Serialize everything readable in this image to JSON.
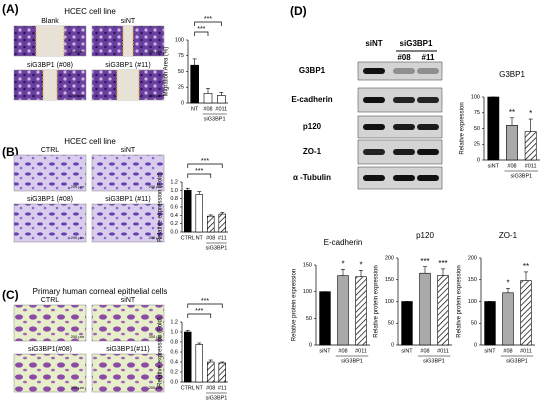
{
  "scale_bar": "200 µm",
  "panels": {
    "a": {
      "label": "(A)",
      "title": "HCEC cell line",
      "images": [
        "Blank",
        "siNT",
        "siG3BP1 (#08)",
        "siG3BP1 (#11)"
      ]
    },
    "b": {
      "label": "(B)",
      "title": "HCEC cell line",
      "images": [
        "CTRL",
        "siNT",
        "siG3BP1 (#08)",
        "siG3BP1 (#11)"
      ]
    },
    "c": {
      "label": "(C)",
      "title": "Primary human corneal epithelial cells",
      "images": [
        "CTRL",
        "siNT",
        "siG3BP1(#08)",
        "siG3BP1(#11)"
      ]
    },
    "d": {
      "label": "(D)",
      "header": [
        "siNT",
        "siG3BP1",
        "#08",
        "#11"
      ],
      "blots": [
        "G3BP1",
        "E-cadherin",
        "p120",
        "ZO-1",
        "α -Tubulin"
      ]
    }
  },
  "chart_data": [
    {
      "type": "bar",
      "ylabel": "Migration Area (%)",
      "categories": [
        "NT",
        "#08",
        "#011"
      ],
      "values": [
        60,
        15,
        12
      ],
      "errors": [
        10,
        8,
        5
      ],
      "colors": [
        "#000000",
        "#ffffff",
        "#ffffff"
      ],
      "hatch": [
        false,
        false,
        false
      ],
      "ylim": [
        0,
        100
      ],
      "yticks": [
        0,
        25,
        50,
        75,
        100
      ],
      "group_label": "siG3BP1",
      "annotations": [
        "***",
        "***"
      ]
    },
    {
      "type": "bar",
      "ylabel": "Relative expression (Fold)",
      "categories": [
        "CTRL",
        "NT",
        "#08",
        "#11"
      ],
      "values": [
        1.0,
        0.9,
        0.38,
        0.43
      ],
      "errors": [
        0.05,
        0.07,
        0.03,
        0.04
      ],
      "colors": [
        "#000000",
        "#ffffff",
        "#ffffff",
        "#ffffff"
      ],
      "hatch": [
        false,
        false,
        true,
        true
      ],
      "ylim": [
        0,
        1.2
      ],
      "yticks": [
        {
          "value": 0,
          "label": "0.0"
        },
        {
          "value": 0.2,
          "label": "0.2"
        },
        {
          "value": 0.4,
          "label": "0.4"
        },
        {
          "value": 0.6,
          "label": "0.6"
        },
        {
          "value": 0.8,
          "label": "0.8"
        },
        {
          "value": 1,
          "label": "1.0"
        },
        {
          "value": 1.2,
          "label": "1.2"
        }
      ],
      "group_label": "siG3BP1",
      "annotations": [
        "***",
        "***"
      ]
    },
    {
      "type": "bar",
      "ylabel": "Relative expression (Fold)",
      "categories": [
        "CTRL",
        "NT",
        "#08",
        "#11"
      ],
      "values": [
        1.0,
        0.75,
        0.4,
        0.38
      ],
      "errors": [
        0.03,
        0.03,
        0.04,
        0.02
      ],
      "colors": [
        "#000000",
        "#ffffff",
        "#ffffff",
        "#ffffff"
      ],
      "hatch": [
        false,
        false,
        true,
        true
      ],
      "ylim": [
        0,
        1.2
      ],
      "yticks": [
        {
          "value": 0,
          "label": "0.0"
        },
        {
          "value": 0.2,
          "label": "0.2"
        },
        {
          "value": 0.4,
          "label": "0.4"
        },
        {
          "value": 0.6,
          "label": "0.6"
        },
        {
          "value": 0.8,
          "label": "0.8"
        },
        {
          "value": 1,
          "label": "1.0"
        },
        {
          "value": 1.2,
          "label": "1.2"
        }
      ],
      "group_label": "siG3BP1",
      "annotations": [
        "***",
        "***"
      ]
    },
    {
      "type": "bar",
      "title": "G3BP1",
      "ylabel": "Relative expression",
      "categories": [
        "siNT",
        "#08",
        "#011"
      ],
      "values": [
        100,
        55,
        45
      ],
      "errors": [
        0,
        12,
        20
      ],
      "colors": [
        "#000000",
        "#aaaaaa",
        "#ffffff"
      ],
      "hatch": [
        false,
        false,
        true
      ],
      "ylim": [
        0,
        100
      ],
      "yticks": [
        0,
        25,
        50,
        75,
        100
      ],
      "group_label": "siG3BP1",
      "annotations": [
        "**",
        "*"
      ]
    },
    {
      "type": "bar",
      "title": "E-cadherin",
      "ylabel": "Relative protein expression",
      "categories": [
        "siNT",
        "#08",
        "#011"
      ],
      "values": [
        100,
        130,
        128
      ],
      "errors": [
        0,
        12,
        12
      ],
      "colors": [
        "#000000",
        "#aaaaaa",
        "#ffffff"
      ],
      "hatch": [
        false,
        false,
        true
      ],
      "ylim": [
        0,
        150
      ],
      "yticks": [
        0,
        50,
        100,
        150
      ],
      "group_label": "siG3BP1",
      "annotations": [
        "*",
        "*"
      ]
    },
    {
      "type": "bar",
      "title": "p120",
      "ylabel": "Relative protein expression",
      "categories": [
        "siNT",
        "#08",
        "#011"
      ],
      "values": [
        100,
        165,
        160
      ],
      "errors": [
        0,
        15,
        15
      ],
      "colors": [
        "#000000",
        "#aaaaaa",
        "#ffffff"
      ],
      "hatch": [
        false,
        false,
        true
      ],
      "ylim": [
        0,
        200
      ],
      "yticks": [
        0,
        50,
        100,
        150,
        200
      ],
      "group_label": "siG3BP1",
      "annotations": [
        "***",
        "***"
      ]
    },
    {
      "type": "bar",
      "title": "ZO-1",
      "ylabel": "Relative protein expression",
      "categories": [
        "siNT",
        "#08",
        "#011"
      ],
      "values": [
        100,
        120,
        148
      ],
      "errors": [
        0,
        10,
        20
      ],
      "colors": [
        "#000000",
        "#aaaaaa",
        "#ffffff"
      ],
      "hatch": [
        false,
        false,
        true
      ],
      "ylim": [
        0,
        200
      ],
      "yticks": [
        0,
        50,
        100,
        150,
        200
      ],
      "group_label": "siG3BP1",
      "annotations": [
        "*",
        "**"
      ]
    }
  ]
}
